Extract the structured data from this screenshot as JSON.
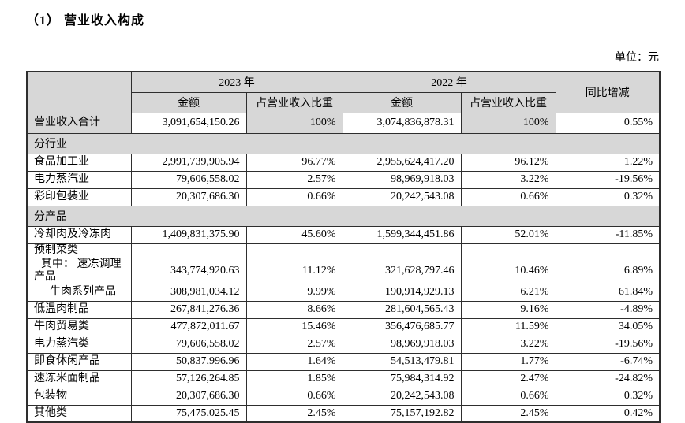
{
  "page": {
    "title": "（1） 营业收入构成",
    "unit_label": "单位：元"
  },
  "colors": {
    "header_shade": "#d7d7d7",
    "border": "#2e2e2e",
    "text": "#000000",
    "background": "#ffffff"
  },
  "table": {
    "headers": {
      "corner": "",
      "year_2023": "2023 年",
      "year_2022": "2022 年",
      "amount_2023": "金额",
      "share_2023": "占营业收入比重",
      "amount_2022": "金额",
      "share_2022": "占营业收入比重",
      "yoy": "同比增减"
    },
    "rows": [
      {
        "type": "total",
        "label": "营业收入合计",
        "values": [
          "3,091,654,150.26",
          "100%",
          "3,074,836,878.31",
          "100%",
          "0.55%"
        ]
      },
      {
        "type": "section",
        "label": "分行业"
      },
      {
        "type": "data",
        "label": "食品加工业",
        "values": [
          "2,991,739,905.94",
          "96.77%",
          "2,955,624,417.20",
          "96.12%",
          "1.22%"
        ]
      },
      {
        "type": "data",
        "label": "电力蒸汽业",
        "values": [
          "79,606,558.02",
          "2.57%",
          "98,969,918.03",
          "3.22%",
          "-19.56%"
        ]
      },
      {
        "type": "data",
        "label": "彩印包装业",
        "values": [
          "20,307,686.30",
          "0.66%",
          "20,242,543.08",
          "0.66%",
          "0.32%"
        ]
      },
      {
        "type": "section",
        "label": "分产品"
      },
      {
        "type": "data",
        "label": "冷却肉及冷冻肉",
        "values": [
          "1,409,831,375.90",
          "45.60%",
          "1,599,344,451.86",
          "52.01%",
          "-11.85%"
        ]
      },
      {
        "type": "data",
        "label": "预制菜类",
        "short": true,
        "values": [
          "",
          "",
          "",
          "",
          ""
        ]
      },
      {
        "type": "data",
        "label": "其中： 速冻调理产品",
        "indent": 1,
        "tall": true,
        "values": [
          "343,774,920.63",
          "11.12%",
          "321,628,797.46",
          "10.46%",
          "6.89%"
        ]
      },
      {
        "type": "data",
        "label": "牛肉系列产品",
        "indent": 2,
        "values": [
          "308,981,034.12",
          "9.99%",
          "190,914,929.13",
          "6.21%",
          "61.84%"
        ]
      },
      {
        "type": "data",
        "label": "低温肉制品",
        "values": [
          "267,841,276.36",
          "8.66%",
          "281,604,565.43",
          "9.16%",
          "-4.89%"
        ]
      },
      {
        "type": "data",
        "label": "牛肉贸易类",
        "values": [
          "477,872,011.67",
          "15.46%",
          "356,476,685.77",
          "11.59%",
          "34.05%"
        ]
      },
      {
        "type": "data",
        "label": "电力蒸汽类",
        "values": [
          "79,606,558.02",
          "2.57%",
          "98,969,918.03",
          "3.22%",
          "-19.56%"
        ]
      },
      {
        "type": "data",
        "label": "即食休闲产品",
        "values": [
          "50,837,996.96",
          "1.64%",
          "54,513,479.81",
          "1.77%",
          "-6.74%"
        ]
      },
      {
        "type": "data",
        "label": "速冻米面制品",
        "values": [
          "57,126,264.85",
          "1.85%",
          "75,984,314.92",
          "2.47%",
          "-24.82%"
        ]
      },
      {
        "type": "data",
        "label": "包装物",
        "values": [
          "20,307,686.30",
          "0.66%",
          "20,242,543.08",
          "0.66%",
          "0.32%"
        ]
      },
      {
        "type": "data",
        "label": "其他类",
        "values": [
          "75,475,025.45",
          "2.45%",
          "75,157,192.82",
          "2.45%",
          "0.42%"
        ]
      }
    ]
  }
}
